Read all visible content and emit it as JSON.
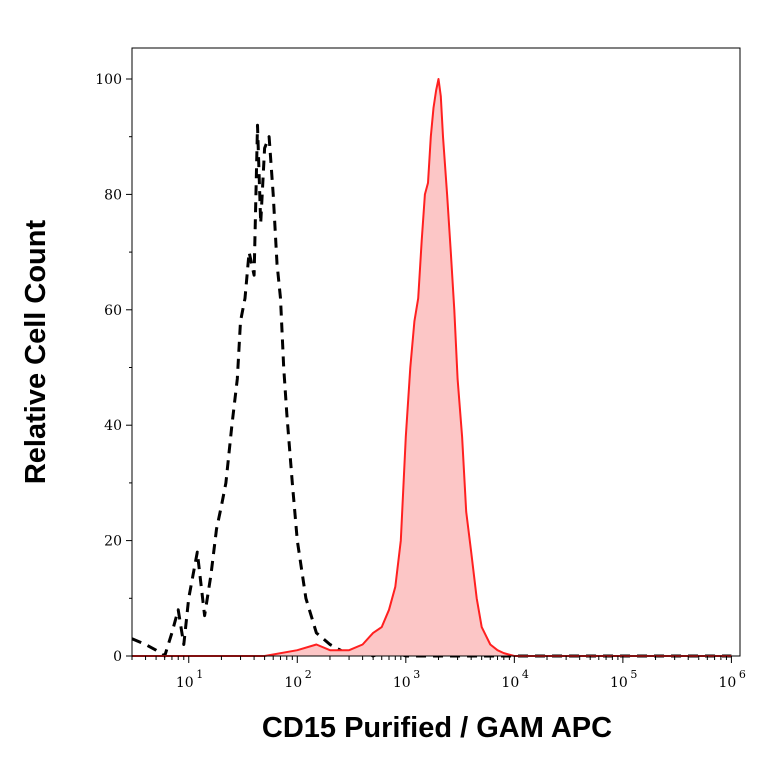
{
  "chart_data": {
    "type": "area",
    "title": "",
    "xlabel": "CD15 Purified / GAM APC",
    "ylabel": "Relative Cell Count",
    "x_scale": "log",
    "xlim": [
      3,
      1200000
    ],
    "ylim": [
      0,
      100
    ],
    "grid": false,
    "y_ticks": [
      "0",
      "20",
      "40",
      "60",
      "80",
      "100"
    ],
    "y_tick_values": [
      0,
      20,
      40,
      60,
      80,
      100
    ],
    "x_ticks": [
      {
        "base": "10",
        "exp": "1",
        "value": 10
      },
      {
        "base": "10",
        "exp": "2",
        "value": 100
      },
      {
        "base": "10",
        "exp": "3",
        "value": 1000
      },
      {
        "base": "10",
        "exp": "4",
        "value": 10000
      },
      {
        "base": "10",
        "exp": "5",
        "value": 100000
      },
      {
        "base": "10",
        "exp": "6",
        "value": 1000000
      }
    ],
    "series": [
      {
        "style": "dashed-black",
        "color": "#000000",
        "x": [
          3,
          4,
          5,
          6,
          7,
          8,
          9,
          10,
          12,
          14,
          16,
          18,
          20,
          22,
          25,
          28,
          30,
          33,
          36,
          40,
          43,
          46,
          50,
          55,
          60,
          65,
          70,
          75,
          80,
          90,
          100,
          120,
          150,
          200,
          250,
          300,
          400,
          500,
          700,
          1000,
          2000,
          5000,
          10000,
          100000,
          1000000
        ],
        "values": [
          3,
          2,
          1,
          0,
          4,
          8,
          2,
          10,
          18,
          7,
          14,
          22,
          26,
          30,
          40,
          48,
          58,
          62,
          70,
          66,
          92,
          75,
          88,
          90,
          80,
          68,
          62,
          50,
          42,
          30,
          20,
          10,
          4,
          2,
          1,
          0,
          1,
          0,
          1,
          0,
          0,
          0,
          0,
          0,
          0
        ]
      },
      {
        "style": "filled-red",
        "color": "#ff2020",
        "fill": "#fcc6c6",
        "x": [
          3,
          50,
          100,
          150,
          200,
          300,
          400,
          500,
          600,
          700,
          800,
          900,
          1000,
          1100,
          1200,
          1300,
          1400,
          1500,
          1600,
          1700,
          1800,
          1900,
          2000,
          2100,
          2200,
          2400,
          2600,
          2800,
          3000,
          3300,
          3600,
          4000,
          4500,
          5000,
          6000,
          7000,
          8000,
          10000,
          20000,
          100000,
          1000000
        ],
        "values": [
          0,
          0,
          1,
          2,
          1,
          1,
          2,
          4,
          5,
          8,
          12,
          20,
          38,
          50,
          58,
          62,
          72,
          80,
          82,
          90,
          95,
          98,
          100,
          97,
          90,
          80,
          70,
          60,
          48,
          38,
          25,
          18,
          10,
          5,
          2,
          1,
          0.5,
          0,
          0,
          0,
          0
        ]
      }
    ]
  }
}
